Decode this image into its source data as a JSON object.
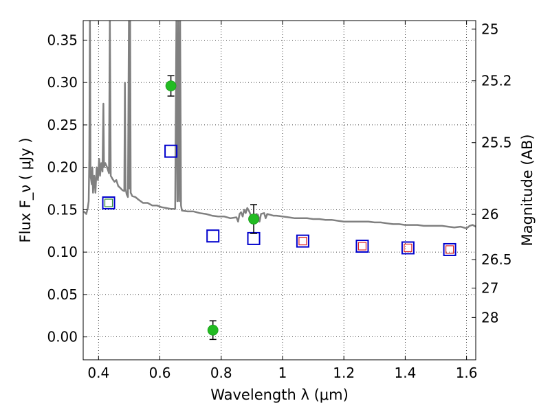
{
  "chart_data": {
    "type": "scatter",
    "xlabel": "Wavelength  λ (μm)",
    "ylabel": "Flux  F_ν  ( μJy )",
    "ylabel_right": "Magnitude (AB)",
    "xlim": [
      0.35,
      1.63
    ],
    "ylim": [
      -0.027,
      0.373
    ],
    "grid": true,
    "x_ticks": [
      0.4,
      0.6,
      0.8,
      1.0,
      1.2,
      1.4,
      1.6
    ],
    "x_tick_labels": [
      "0.4",
      "0.6",
      "0.8",
      "1",
      "1.2",
      "1.4",
      "1.6"
    ],
    "y_ticks": [
      0.0,
      0.05,
      0.1,
      0.15,
      0.2,
      0.25,
      0.3,
      0.35
    ],
    "y_tick_labels": [
      "0.00",
      "0.05",
      "0.10",
      "0.15",
      "0.20",
      "0.25",
      "0.30",
      "0.35"
    ],
    "mag_ticks": [
      {
        "mag": 25,
        "label": "25"
      },
      {
        "mag": 25.2,
        "label": "25.2"
      },
      {
        "mag": 25.5,
        "label": "25.5"
      },
      {
        "mag": 26,
        "label": "26"
      },
      {
        "mag": 26.5,
        "label": "26.5"
      },
      {
        "mag": 27,
        "label": "27"
      },
      {
        "mag": 28,
        "label": "28"
      }
    ],
    "series": [
      {
        "kind": "line",
        "color": "#808080",
        "points": [
          [
            0.352,
            0.148
          ],
          [
            0.36,
            0.145
          ],
          [
            0.365,
            0.152
          ],
          [
            0.368,
            0.16
          ],
          [
            0.37,
            0.21
          ],
          [
            0.372,
            0.373
          ],
          [
            0.374,
            0.19
          ],
          [
            0.378,
            0.18
          ],
          [
            0.38,
            0.2
          ],
          [
            0.382,
            0.17
          ],
          [
            0.386,
            0.19
          ],
          [
            0.39,
            0.17
          ],
          [
            0.394,
            0.2
          ],
          [
            0.398,
            0.185
          ],
          [
            0.402,
            0.21
          ],
          [
            0.405,
            0.19
          ],
          [
            0.409,
            0.205
          ],
          [
            0.413,
            0.195
          ],
          [
            0.416,
            0.275
          ],
          [
            0.418,
            0.2
          ],
          [
            0.422,
            0.205
          ],
          [
            0.428,
            0.2
          ],
          [
            0.434,
            0.193
          ],
          [
            0.437,
            0.373
          ],
          [
            0.44,
            0.19
          ],
          [
            0.446,
            0.186
          ],
          [
            0.452,
            0.183
          ],
          [
            0.458,
            0.185
          ],
          [
            0.464,
            0.178
          ],
          [
            0.47,
            0.176
          ],
          [
            0.478,
            0.173
          ],
          [
            0.484,
            0.172
          ],
          [
            0.486,
            0.3
          ],
          [
            0.488,
            0.175
          ],
          [
            0.492,
            0.168
          ],
          [
            0.496,
            0.165
          ],
          [
            0.499,
            0.373
          ],
          [
            0.501,
            0.175
          ],
          [
            0.503,
            0.373
          ],
          [
            0.505,
            0.17
          ],
          [
            0.51,
            0.166
          ],
          [
            0.52,
            0.165
          ],
          [
            0.53,
            0.162
          ],
          [
            0.545,
            0.158
          ],
          [
            0.56,
            0.158
          ],
          [
            0.575,
            0.155
          ],
          [
            0.59,
            0.155
          ],
          [
            0.605,
            0.153
          ],
          [
            0.62,
            0.152
          ],
          [
            0.635,
            0.151
          ],
          [
            0.65,
            0.151
          ],
          [
            0.654,
            0.373
          ],
          [
            0.657,
            0.16
          ],
          [
            0.66,
            0.373
          ],
          [
            0.663,
            0.16
          ],
          [
            0.666,
            0.373
          ],
          [
            0.669,
            0.155
          ],
          [
            0.672,
            0.149
          ],
          [
            0.69,
            0.148
          ],
          [
            0.71,
            0.148
          ],
          [
            0.73,
            0.146
          ],
          [
            0.75,
            0.145
          ],
          [
            0.77,
            0.143
          ],
          [
            0.79,
            0.142
          ],
          [
            0.81,
            0.142
          ],
          [
            0.83,
            0.14
          ],
          [
            0.85,
            0.141
          ],
          [
            0.855,
            0.136
          ],
          [
            0.86,
            0.145
          ],
          [
            0.865,
            0.147
          ],
          [
            0.87,
            0.142
          ],
          [
            0.875,
            0.15
          ],
          [
            0.88,
            0.146
          ],
          [
            0.885,
            0.152
          ],
          [
            0.89,
            0.149
          ],
          [
            0.895,
            0.145
          ],
          [
            0.9,
            0.14
          ],
          [
            0.905,
            0.144
          ],
          [
            0.91,
            0.141
          ],
          [
            0.915,
            0.145
          ],
          [
            0.92,
            0.144
          ],
          [
            0.925,
            0.136
          ],
          [
            0.93,
            0.145
          ],
          [
            0.94,
            0.146
          ],
          [
            0.945,
            0.14
          ],
          [
            0.95,
            0.145
          ],
          [
            0.96,
            0.144
          ],
          [
            0.97,
            0.143
          ],
          [
            0.98,
            0.143
          ],
          [
            1.0,
            0.142
          ],
          [
            1.02,
            0.141
          ],
          [
            1.04,
            0.14
          ],
          [
            1.06,
            0.14
          ],
          [
            1.08,
            0.14
          ],
          [
            1.1,
            0.139
          ],
          [
            1.12,
            0.139
          ],
          [
            1.14,
            0.138
          ],
          [
            1.16,
            0.138
          ],
          [
            1.18,
            0.137
          ],
          [
            1.2,
            0.136
          ],
          [
            1.22,
            0.136
          ],
          [
            1.24,
            0.136
          ],
          [
            1.26,
            0.136
          ],
          [
            1.28,
            0.136
          ],
          [
            1.3,
            0.135
          ],
          [
            1.32,
            0.135
          ],
          [
            1.34,
            0.134
          ],
          [
            1.36,
            0.133
          ],
          [
            1.38,
            0.133
          ],
          [
            1.4,
            0.132
          ],
          [
            1.42,
            0.132
          ],
          [
            1.44,
            0.132
          ],
          [
            1.46,
            0.131
          ],
          [
            1.48,
            0.131
          ],
          [
            1.5,
            0.131
          ],
          [
            1.52,
            0.131
          ],
          [
            1.54,
            0.13
          ],
          [
            1.56,
            0.129
          ],
          [
            1.58,
            0.13
          ],
          [
            1.6,
            0.128
          ],
          [
            1.61,
            0.131
          ],
          [
            1.62,
            0.132
          ],
          [
            1.63,
            0.13
          ]
        ]
      },
      {
        "kind": "square",
        "color": "#0000cc",
        "points": [
          [
            0.433,
            0.158
          ],
          [
            0.636,
            0.219
          ],
          [
            0.773,
            0.119
          ],
          [
            0.906,
            0.116
          ],
          [
            1.066,
            0.113
          ],
          [
            1.26,
            0.107
          ],
          [
            1.409,
            0.105
          ],
          [
            1.545,
            0.103
          ]
        ]
      },
      {
        "kind": "square",
        "color": "#2e8b2e",
        "points": [
          [
            0.433,
            0.158
          ]
        ]
      },
      {
        "kind": "square",
        "color": "#dd2222",
        "points": [
          [
            1.066,
            0.113
          ],
          [
            1.26,
            0.107
          ],
          [
            1.409,
            0.105
          ],
          [
            1.545,
            0.103
          ]
        ]
      },
      {
        "kind": "circle_err",
        "color": "#22bb22",
        "points": [
          [
            0.636,
            0.296,
            0.012
          ],
          [
            0.773,
            0.008,
            0.011
          ],
          [
            0.906,
            0.139,
            0.017
          ]
        ]
      }
    ]
  }
}
